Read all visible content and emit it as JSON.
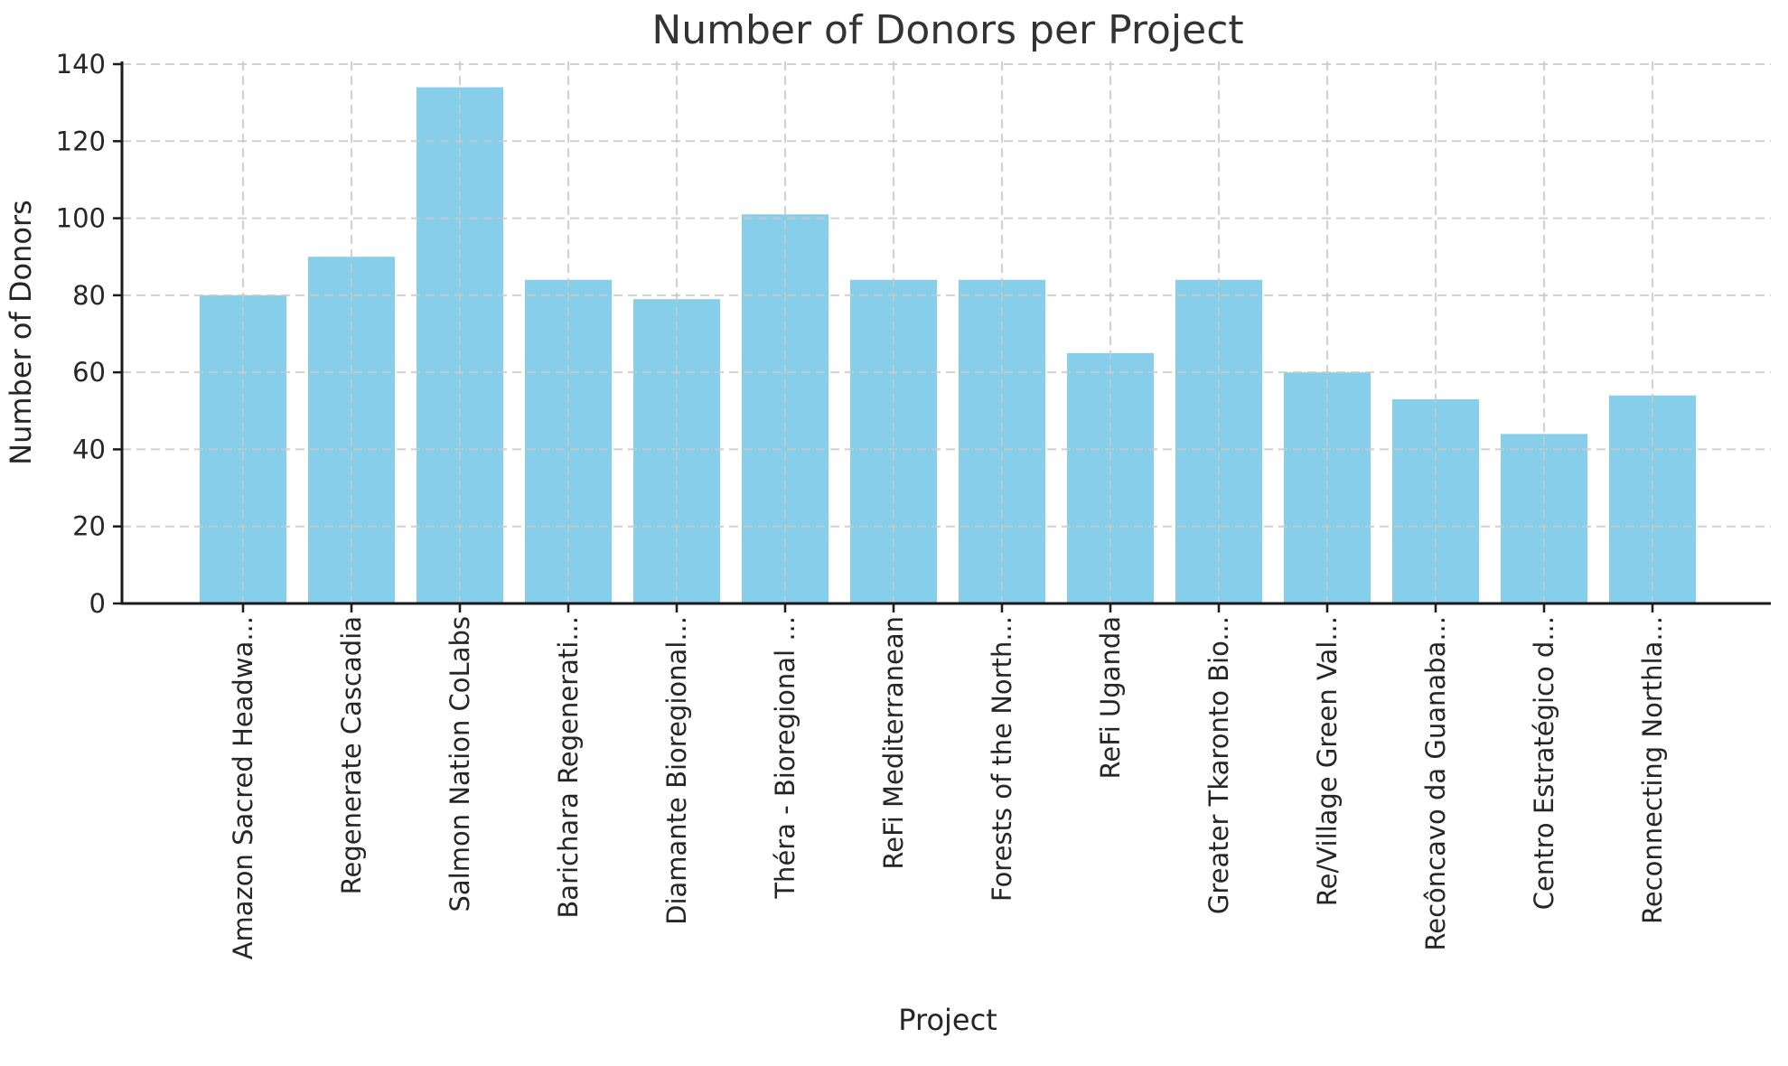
{
  "chart_data": {
    "type": "bar",
    "title": "Number of Donors per Project",
    "xlabel": "Project",
    "ylabel": "Number of Donors",
    "categories": [
      "Amazon Sacred Headwa...",
      "Regenerate Cascadia",
      "Salmon Nation CoLabs",
      "Barichara Regenerati...",
      "Diamante Bioregional...",
      "Théra - Bioregional ...",
      "ReFi Mediterranean",
      "Forests of the North...",
      "ReFi Uganda",
      "Greater Tkaronto Bio...",
      "Re/Village Green Val...",
      "Recôncavo da Guanaba...",
      "Centro Estratégico d...",
      "Reconnecting Northla..."
    ],
    "values": [
      80,
      90,
      134,
      84,
      79,
      101,
      84,
      84,
      65,
      84,
      60,
      53,
      44,
      54
    ],
    "ylim": [
      0,
      140
    ],
    "yticks": [
      0,
      20,
      40,
      60,
      80,
      100,
      120,
      140
    ],
    "legend": null,
    "grid": "dashed, both axes, drawn over bars",
    "colors": {
      "bar": "#87CEEB",
      "grid": "#c9c9c9",
      "spine": "#1a1a1a",
      "text": "#262626",
      "title": "#333333",
      "background": "#ffffff"
    }
  }
}
